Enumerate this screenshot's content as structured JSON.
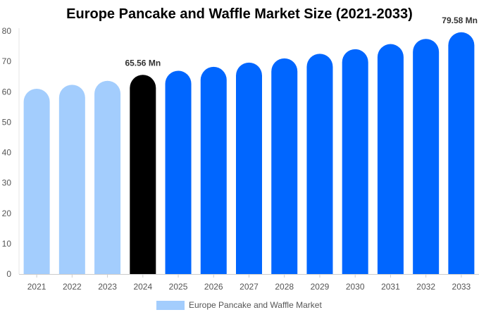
{
  "chart_data": {
    "type": "bar",
    "title": "Europe Pancake and Waffle Market Size (2021-2033)",
    "categories": [
      "2021",
      "2022",
      "2023",
      "2024",
      "2025",
      "2026",
      "2027",
      "2028",
      "2029",
      "2030",
      "2031",
      "2032",
      "2033"
    ],
    "series": [
      {
        "name": "Europe Pancake and Waffle Market",
        "values": [
          61.0,
          62.3,
          63.6,
          65.56,
          66.9,
          68.2,
          69.6,
          71.0,
          72.5,
          74.0,
          75.7,
          77.4,
          79.58
        ]
      }
    ],
    "data_labels": [
      {
        "category": "2024",
        "text": "65.56 Mn"
      },
      {
        "category": "2033",
        "text": "79.58 Mn"
      }
    ],
    "ylim": [
      0,
      80
    ],
    "yticks": [
      0,
      10,
      20,
      30,
      40,
      50,
      60,
      70,
      80
    ],
    "grid": false,
    "legend": "bottom",
    "colors": {
      "historical": "#a3cdfd",
      "current": "#000000",
      "forecast": "#0066ff",
      "legend_swatch": "#a3cdfd"
    },
    "bar_color_keys": [
      "historical",
      "historical",
      "historical",
      "current",
      "forecast",
      "forecast",
      "forecast",
      "forecast",
      "forecast",
      "forecast",
      "forecast",
      "forecast",
      "forecast"
    ]
  }
}
